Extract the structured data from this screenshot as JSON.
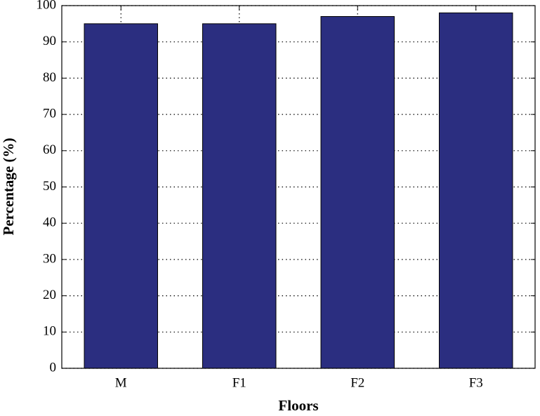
{
  "chart_data": {
    "type": "bar",
    "x_label": "Floors",
    "y_label": "Percentage (%)",
    "categories": [
      "M",
      "F1",
      "F2",
      "F3"
    ],
    "values": [
      95,
      95,
      97,
      98
    ],
    "color": "#2b2e80",
    "ylim": [
      0,
      100
    ],
    "yticks": [
      0,
      10,
      20,
      30,
      40,
      50,
      60,
      70,
      80,
      90,
      100
    ],
    "grid": true
  }
}
